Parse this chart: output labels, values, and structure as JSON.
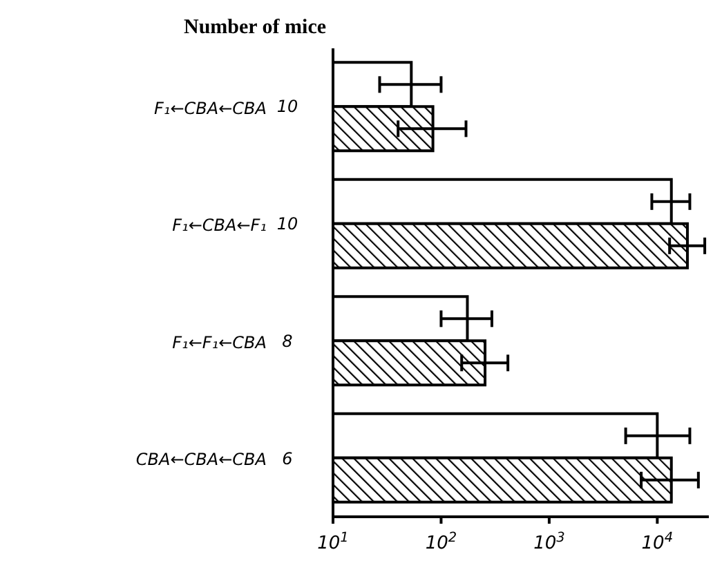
{
  "chart_data": {
    "type": "bar",
    "orientation": "horizontal",
    "log": "x",
    "title": "Number of mice",
    "categories": [
      "F₁←CBA←CBA",
      "F₁←CBA←F₁",
      "F₁←F₁←CBA",
      "CBA←CBA←CBA"
    ],
    "series": [
      {
        "color": "#ffffff",
        "values": [
          53,
          13500,
          175,
          10000
        ],
        "errors": [
          [
            27,
            100
          ],
          [
            8900,
            20000
          ],
          [
            100,
            295
          ],
          [
            5100,
            20000
          ]
        ]
      },
      {
        "color": "#000000",
        "values": [
          84,
          19000,
          255,
          13500
        ],
        "errors": [
          [
            40,
            170
          ],
          [
            13000,
            27500
          ],
          [
            155,
            415
          ],
          [
            7100,
            24000
          ]
        ]
      }
    ],
    "annotations": [
      "10",
      "10",
      "8",
      "6"
    ],
    "xlim": [
      10,
      30000
    ],
    "xticks": [
      {
        "value": 10,
        "label": "10$^{1}$"
      },
      {
        "value": 100,
        "label": "10$^{2}$"
      },
      {
        "value": 1000,
        "label": "10$^{3}$"
      },
      {
        "value": 10000,
        "label": "10$^{4}$"
      }
    ]
  }
}
